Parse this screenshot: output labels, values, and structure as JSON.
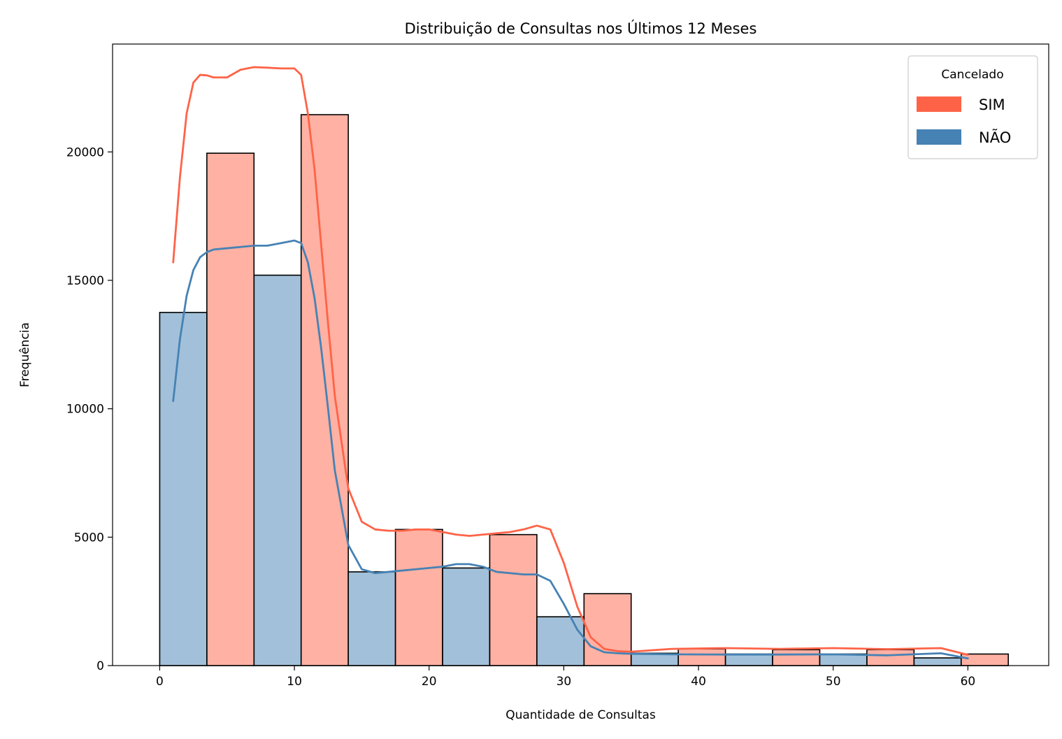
{
  "chart_data": {
    "type": "bar",
    "title": "Distribuição de Consultas nos Últimos 12 Meses",
    "xlabel": "Quantidade de Consultas",
    "ylabel": "Frequência",
    "xlim": [
      -3.5,
      66
    ],
    "ylim": [
      0,
      24200
    ],
    "xticks": [
      0,
      10,
      20,
      30,
      40,
      50,
      60
    ],
    "yticks": [
      0,
      5000,
      10000,
      15000,
      20000
    ],
    "grid": false,
    "legend": {
      "title": "Cancelado",
      "placement": "top-right",
      "entries": [
        {
          "label": "SIM",
          "color": "#FF6347"
        },
        {
          "label": "NÃO",
          "color": "#4682B4"
        }
      ]
    },
    "bars": [
      {
        "x0": 0.0,
        "x1": 3.5,
        "value": 13750,
        "group": "NÃO"
      },
      {
        "x0": 3.5,
        "x1": 7.0,
        "value": 19950,
        "group": "SIM"
      },
      {
        "x0": 7.0,
        "x1": 10.5,
        "value": 15200,
        "group": "NÃO"
      },
      {
        "x0": 10.5,
        "x1": 14.0,
        "value": 21450,
        "group": "SIM"
      },
      {
        "x0": 14.0,
        "x1": 17.5,
        "value": 3650,
        "group": "NÃO"
      },
      {
        "x0": 17.5,
        "x1": 21.0,
        "value": 5300,
        "group": "SIM"
      },
      {
        "x0": 21.0,
        "x1": 24.5,
        "value": 3800,
        "group": "NÃO"
      },
      {
        "x0": 24.5,
        "x1": 28.0,
        "value": 5100,
        "group": "SIM"
      },
      {
        "x0": 28.0,
        "x1": 31.5,
        "value": 1900,
        "group": "NÃO"
      },
      {
        "x0": 31.5,
        "x1": 35.0,
        "value": 2800,
        "group": "SIM"
      },
      {
        "x0": 35.0,
        "x1": 38.5,
        "value": 480,
        "group": "NÃO"
      },
      {
        "x0": 38.5,
        "x1": 42.0,
        "value": 650,
        "group": "SIM"
      },
      {
        "x0": 42.0,
        "x1": 45.5,
        "value": 450,
        "group": "NÃO"
      },
      {
        "x0": 45.5,
        "x1": 49.0,
        "value": 620,
        "group": "SIM"
      },
      {
        "x0": 49.0,
        "x1": 52.5,
        "value": 450,
        "group": "NÃO"
      },
      {
        "x0": 52.5,
        "x1": 56.0,
        "value": 620,
        "group": "SIM"
      },
      {
        "x0": 56.0,
        "x1": 59.5,
        "value": 300,
        "group": "NÃO"
      },
      {
        "x0": 59.5,
        "x1": 63.0,
        "value": 450,
        "group": "SIM"
      }
    ],
    "series": [
      {
        "name": "SIM",
        "color": "#FF6347",
        "x": [
          1,
          1.5,
          2,
          2.5,
          3,
          3.5,
          4,
          5,
          6,
          7,
          8,
          9,
          10,
          10.5,
          11,
          11.5,
          12,
          12.5,
          13,
          14,
          15,
          16,
          17,
          18,
          19,
          20,
          21,
          22,
          23,
          24,
          25,
          26,
          27,
          28,
          29,
          30,
          31,
          32,
          33,
          34,
          35,
          38,
          42,
          46,
          50,
          54,
          58,
          60
        ],
        "y": [
          15700,
          19000,
          21500,
          22700,
          23000,
          22980,
          22900,
          22900,
          23200,
          23300,
          23280,
          23250,
          23250,
          23000,
          21500,
          19300,
          16300,
          13300,
          10500,
          6900,
          5600,
          5300,
          5250,
          5250,
          5300,
          5300,
          5200,
          5100,
          5050,
          5100,
          5150,
          5200,
          5300,
          5450,
          5300,
          4000,
          2300,
          1100,
          650,
          560,
          540,
          650,
          680,
          650,
          680,
          640,
          680,
          420
        ]
      },
      {
        "name": "NÃO",
        "color": "#4682B4",
        "x": [
          1,
          1.5,
          2,
          2.5,
          3,
          3.5,
          4,
          5,
          6,
          7,
          8,
          9,
          10,
          10.5,
          11,
          11.5,
          12,
          12.5,
          13,
          14,
          15,
          16,
          17,
          18,
          19,
          20,
          21,
          22,
          23,
          24,
          25,
          26,
          27,
          28,
          29,
          30,
          31,
          32,
          33,
          34,
          35,
          38,
          42,
          46,
          50,
          54,
          58,
          60
        ],
        "y": [
          10300,
          12700,
          14400,
          15400,
          15900,
          16100,
          16200,
          16250,
          16300,
          16350,
          16350,
          16450,
          16550,
          16450,
          15700,
          14300,
          12300,
          10000,
          7600,
          4700,
          3750,
          3600,
          3650,
          3700,
          3750,
          3800,
          3850,
          3950,
          3950,
          3850,
          3650,
          3600,
          3550,
          3550,
          3300,
          2400,
          1400,
          750,
          520,
          480,
          460,
          440,
          430,
          430,
          440,
          400,
          480,
          280
        ]
      }
    ]
  }
}
